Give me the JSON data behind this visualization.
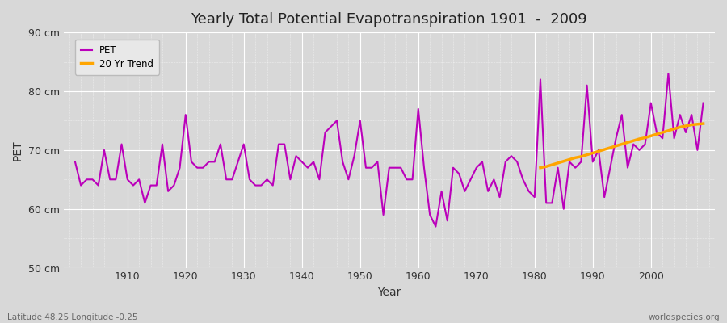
{
  "title": "Yearly Total Potential Evapotranspiration 1901  -  2009",
  "xlabel": "Year",
  "ylabel": "PET",
  "subtitle_left": "Latitude 48.25 Longitude -0.25",
  "subtitle_right": "worldspecies.org",
  "ylim": [
    50,
    90
  ],
  "yticks": [
    50,
    60,
    70,
    80,
    90
  ],
  "ytick_labels": [
    "50 cm",
    "60 cm",
    "70 cm",
    "80 cm",
    "90 cm"
  ],
  "pet_color": "#bb00bb",
  "trend_color": "#FFA500",
  "bg_color": "#d8d8d8",
  "plot_bg_color": "#d8d8d8",
  "legend_bg": "#e8e8e8",
  "legend_labels": [
    "PET",
    "20 Yr Trend"
  ],
  "years": [
    1901,
    1902,
    1903,
    1904,
    1905,
    1906,
    1907,
    1908,
    1909,
    1910,
    1911,
    1912,
    1913,
    1914,
    1915,
    1916,
    1917,
    1918,
    1919,
    1920,
    1921,
    1922,
    1923,
    1924,
    1925,
    1926,
    1927,
    1928,
    1929,
    1930,
    1931,
    1932,
    1933,
    1934,
    1935,
    1936,
    1937,
    1938,
    1939,
    1940,
    1941,
    1942,
    1943,
    1944,
    1945,
    1946,
    1947,
    1948,
    1949,
    1950,
    1951,
    1952,
    1953,
    1954,
    1955,
    1956,
    1957,
    1958,
    1959,
    1960,
    1961,
    1962,
    1963,
    1964,
    1965,
    1966,
    1967,
    1968,
    1969,
    1970,
    1971,
    1972,
    1973,
    1974,
    1975,
    1976,
    1977,
    1978,
    1979,
    1980,
    1981,
    1982,
    1983,
    1984,
    1985,
    1986,
    1987,
    1988,
    1989,
    1990,
    1991,
    1992,
    1993,
    1994,
    1995,
    1996,
    1997,
    1998,
    1999,
    2000,
    2001,
    2002,
    2003,
    2004,
    2005,
    2006,
    2007,
    2008,
    2009
  ],
  "pet_values": [
    68,
    64,
    65,
    65,
    64,
    70,
    65,
    65,
    71,
    65,
    64,
    65,
    61,
    64,
    64,
    71,
    63,
    64,
    67,
    76,
    68,
    67,
    67,
    68,
    68,
    71,
    65,
    65,
    68,
    71,
    65,
    64,
    64,
    65,
    64,
    71,
    71,
    65,
    69,
    68,
    67,
    68,
    65,
    73,
    74,
    75,
    68,
    65,
    69,
    75,
    67,
    67,
    68,
    59,
    67,
    67,
    67,
    65,
    65,
    77,
    67,
    59,
    57,
    63,
    58,
    67,
    66,
    63,
    65,
    67,
    68,
    63,
    65,
    62,
    68,
    69,
    68,
    65,
    63,
    62,
    82,
    61,
    61,
    67,
    60,
    68,
    67,
    68,
    81,
    68,
    70,
    62,
    67,
    72,
    76,
    67,
    71,
    70,
    71,
    78,
    73,
    72,
    83,
    72,
    76,
    73,
    76,
    70,
    78
  ],
  "trend_years": [
    1981,
    1982,
    1983,
    1984,
    1985,
    1986,
    1987,
    1988,
    1989,
    1990,
    1991,
    1992,
    1993,
    1994,
    1995,
    1996,
    1997,
    1998,
    1999,
    2000,
    2001,
    2002,
    2003,
    2004,
    2005,
    2006,
    2007,
    2008,
    2009
  ],
  "trend_values": [
    67.0,
    67.2,
    67.5,
    67.8,
    68.1,
    68.4,
    68.7,
    68.9,
    69.2,
    69.5,
    69.8,
    70.1,
    70.4,
    70.7,
    71.0,
    71.3,
    71.6,
    71.9,
    72.1,
    72.4,
    72.7,
    73.0,
    73.3,
    73.6,
    73.9,
    74.1,
    74.3,
    74.4,
    74.5
  ]
}
